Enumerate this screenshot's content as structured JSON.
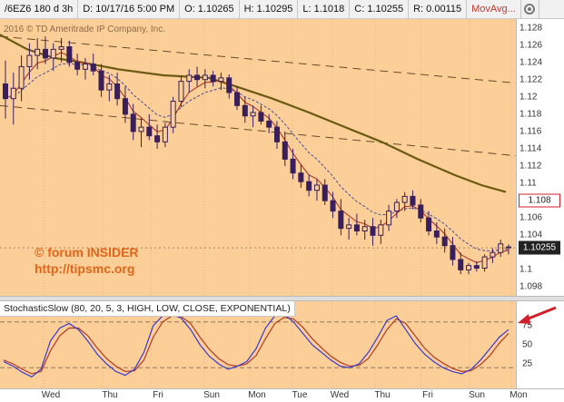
{
  "header": {
    "symbol": "/6EZ6 180 d 3h",
    "date": "D: 10/17/16 5:00 PM",
    "open": "O: 1.10265",
    "high": "H: 1.10295",
    "low": "L: 1.1018",
    "close": "C: 1.10255",
    "range": "R: 0.00115",
    "study": "MovAvg...",
    "settings_icon": "gear-icon"
  },
  "copyright": "2016 © TD Ameritrade IP Company, Inc.",
  "watermark": {
    "line1": "© forum INSIDER",
    "line2": "http://tipsmc.org"
  },
  "price_axis": {
    "ticks": [
      "1.128",
      "1.126",
      "1.124",
      "1.122",
      "1.12",
      "1.118",
      "1.116",
      "1.114",
      "1.112",
      "1.11",
      "1.106",
      "1.104",
      "1.102",
      "1.1",
      "1.098"
    ],
    "boxed_tag": "1.108",
    "last_tag": "1.10255"
  },
  "study": {
    "label": "StochasticSlow (80, 20, 5, 3, HIGH, LOW, CLOSE, EXPONENTIAL)",
    "ticks": [
      "75",
      "50",
      "25"
    ]
  },
  "time_axis": {
    "ticks": [
      "Wed",
      "Thu",
      "Fri",
      "Sun",
      "Mon",
      "Tue",
      "Wed",
      "Thu",
      "Fri",
      "Sun",
      "Mon"
    ]
  },
  "colors": {
    "background": "#fbcf97",
    "candle": "#3a1f5c",
    "fast_ma": "#b0392b",
    "slow_ma": "#4b4b9a",
    "long_ma": "#6b5a12",
    "stoch_k": "#3a3ad0",
    "stoch_d": "#b33a24",
    "highlight": "#d0202a"
  },
  "chart_data": {
    "type": "line",
    "price_range": [
      1.097,
      1.129
    ],
    "last_price": 1.10255,
    "ohlc": [
      [
        1.1215,
        1.1242,
        1.1175,
        1.1198
      ],
      [
        1.1198,
        1.1228,
        1.1168,
        1.121
      ],
      [
        1.121,
        1.1248,
        1.1195,
        1.1235
      ],
      [
        1.1235,
        1.1262,
        1.122,
        1.1248
      ],
      [
        1.1248,
        1.1268,
        1.1232,
        1.1255
      ],
      [
        1.1255,
        1.127,
        1.1238,
        1.1245
      ],
      [
        1.1245,
        1.1262,
        1.123,
        1.1255
      ],
      [
        1.1255,
        1.1268,
        1.124,
        1.1258
      ],
      [
        1.1258,
        1.1265,
        1.1235,
        1.124
      ],
      [
        1.124,
        1.125,
        1.1225,
        1.1232
      ],
      [
        1.1232,
        1.1245,
        1.122,
        1.1238
      ],
      [
        1.1238,
        1.125,
        1.1225,
        1.123
      ],
      [
        1.123,
        1.1238,
        1.12,
        1.1208
      ],
      [
        1.1208,
        1.1225,
        1.1195,
        1.1215
      ],
      [
        1.1215,
        1.1228,
        1.119,
        1.1198
      ],
      [
        1.1198,
        1.1212,
        1.117,
        1.118
      ],
      [
        1.118,
        1.1192,
        1.115,
        1.116
      ],
      [
        1.116,
        1.1175,
        1.1142,
        1.1165
      ],
      [
        1.1165,
        1.118,
        1.115,
        1.1155
      ],
      [
        1.1155,
        1.1168,
        1.114,
        1.1148
      ],
      [
        1.1148,
        1.117,
        1.1142,
        1.1165
      ],
      [
        1.1165,
        1.12,
        1.1158,
        1.1195
      ],
      [
        1.1195,
        1.1225,
        1.1188,
        1.1218
      ],
      [
        1.1218,
        1.1232,
        1.1205,
        1.1225
      ],
      [
        1.1225,
        1.1235,
        1.1212,
        1.122
      ],
      [
        1.122,
        1.1232,
        1.121,
        1.1225
      ],
      [
        1.1225,
        1.123,
        1.1212,
        1.1218
      ],
      [
        1.1218,
        1.1228,
        1.1208,
        1.1222
      ],
      [
        1.1222,
        1.1226,
        1.1198,
        1.1205
      ],
      [
        1.1205,
        1.1212,
        1.1185,
        1.119
      ],
      [
        1.119,
        1.12,
        1.117,
        1.1178
      ],
      [
        1.1178,
        1.119,
        1.1165,
        1.1182
      ],
      [
        1.1182,
        1.119,
        1.1168,
        1.1172
      ],
      [
        1.1172,
        1.118,
        1.1158,
        1.1165
      ],
      [
        1.1165,
        1.1172,
        1.114,
        1.1148
      ],
      [
        1.1148,
        1.116,
        1.112,
        1.1128
      ],
      [
        1.1128,
        1.114,
        1.1105,
        1.1112
      ],
      [
        1.1112,
        1.1122,
        1.1095,
        1.1102
      ],
      [
        1.1102,
        1.111,
        1.1085,
        1.1092
      ],
      [
        1.1092,
        1.1105,
        1.108,
        1.1098
      ],
      [
        1.1098,
        1.1105,
        1.1075,
        1.108
      ],
      [
        1.108,
        1.109,
        1.106,
        1.1068
      ],
      [
        1.1068,
        1.1082,
        1.104,
        1.1048
      ],
      [
        1.1048,
        1.106,
        1.1035,
        1.1052
      ],
      [
        1.1052,
        1.1065,
        1.104,
        1.1045
      ],
      [
        1.1045,
        1.1058,
        1.1035,
        1.105
      ],
      [
        1.105,
        1.106,
        1.1028,
        1.104
      ],
      [
        1.104,
        1.1058,
        1.103,
        1.1052
      ],
      [
        1.1052,
        1.1075,
        1.1045,
        1.1068
      ],
      [
        1.1068,
        1.1082,
        1.106,
        1.1078
      ],
      [
        1.1078,
        1.109,
        1.1068,
        1.1085
      ],
      [
        1.1085,
        1.1092,
        1.107,
        1.1075
      ],
      [
        1.1075,
        1.1082,
        1.1055,
        1.106
      ],
      [
        1.106,
        1.1068,
        1.104,
        1.1045
      ],
      [
        1.1045,
        1.1055,
        1.103,
        1.1038
      ],
      [
        1.1038,
        1.1048,
        1.102,
        1.1028
      ],
      [
        1.1028,
        1.1038,
        1.1005,
        1.1012
      ],
      [
        1.1012,
        1.102,
        1.0995,
        1.1
      ],
      [
        1.1,
        1.1008,
        1.0995,
        1.1005
      ],
      [
        1.1005,
        1.101,
        1.0998,
        1.1002
      ],
      [
        1.1002,
        1.1018,
        1.0998,
        1.1015
      ],
      [
        1.1015,
        1.1025,
        1.1008,
        1.102
      ],
      [
        1.102,
        1.1035,
        1.1015,
        1.103
      ],
      [
        1.10265,
        1.10295,
        1.1018,
        1.10255
      ]
    ],
    "long_ma": [
      [
        0,
        1.1272
      ],
      [
        30,
        1.1255
      ],
      [
        60,
        1.1245
      ],
      [
        90,
        1.124
      ],
      [
        130,
        1.1232
      ],
      [
        180,
        1.1225
      ],
      [
        230,
        1.1222
      ],
      [
        260,
        1.1212
      ],
      [
        300,
        1.1198
      ],
      [
        340,
        1.1182
      ],
      [
        380,
        1.1165
      ],
      [
        420,
        1.1148
      ],
      [
        460,
        1.1128
      ],
      [
        500,
        1.111
      ],
      [
        530,
        1.1098
      ],
      [
        557,
        1.109
      ]
    ],
    "trendlines": [
      {
        "from": [
          0,
          1.127
        ],
        "to": [
          568,
          1.1216
        ]
      },
      {
        "from": [
          0,
          1.119
        ],
        "to": [
          568,
          1.1132
        ]
      }
    ],
    "stochastic": {
      "levels": [
        80,
        20
      ],
      "k": [
        28,
        22,
        14,
        8,
        18,
        55,
        72,
        78,
        70,
        55,
        38,
        25,
        15,
        10,
        18,
        40,
        75,
        88,
        90,
        85,
        70,
        50,
        35,
        25,
        18,
        22,
        28,
        45,
        72,
        88,
        90,
        80,
        65,
        50,
        40,
        30,
        22,
        20,
        25,
        40,
        60,
        82,
        88,
        70,
        52,
        38,
        28,
        20,
        15,
        12,
        18,
        30,
        45,
        60,
        70
      ],
      "d": [
        30,
        25,
        18,
        12,
        15,
        42,
        62,
        72,
        72,
        62,
        46,
        32,
        22,
        15,
        16,
        30,
        60,
        80,
        88,
        87,
        78,
        60,
        44,
        32,
        24,
        22,
        25,
        36,
        58,
        78,
        86,
        84,
        73,
        58,
        46,
        35,
        27,
        22,
        23,
        32,
        50,
        70,
        84,
        78,
        62,
        46,
        34,
        26,
        19,
        15,
        16,
        24,
        36,
        52,
        65
      ]
    }
  }
}
